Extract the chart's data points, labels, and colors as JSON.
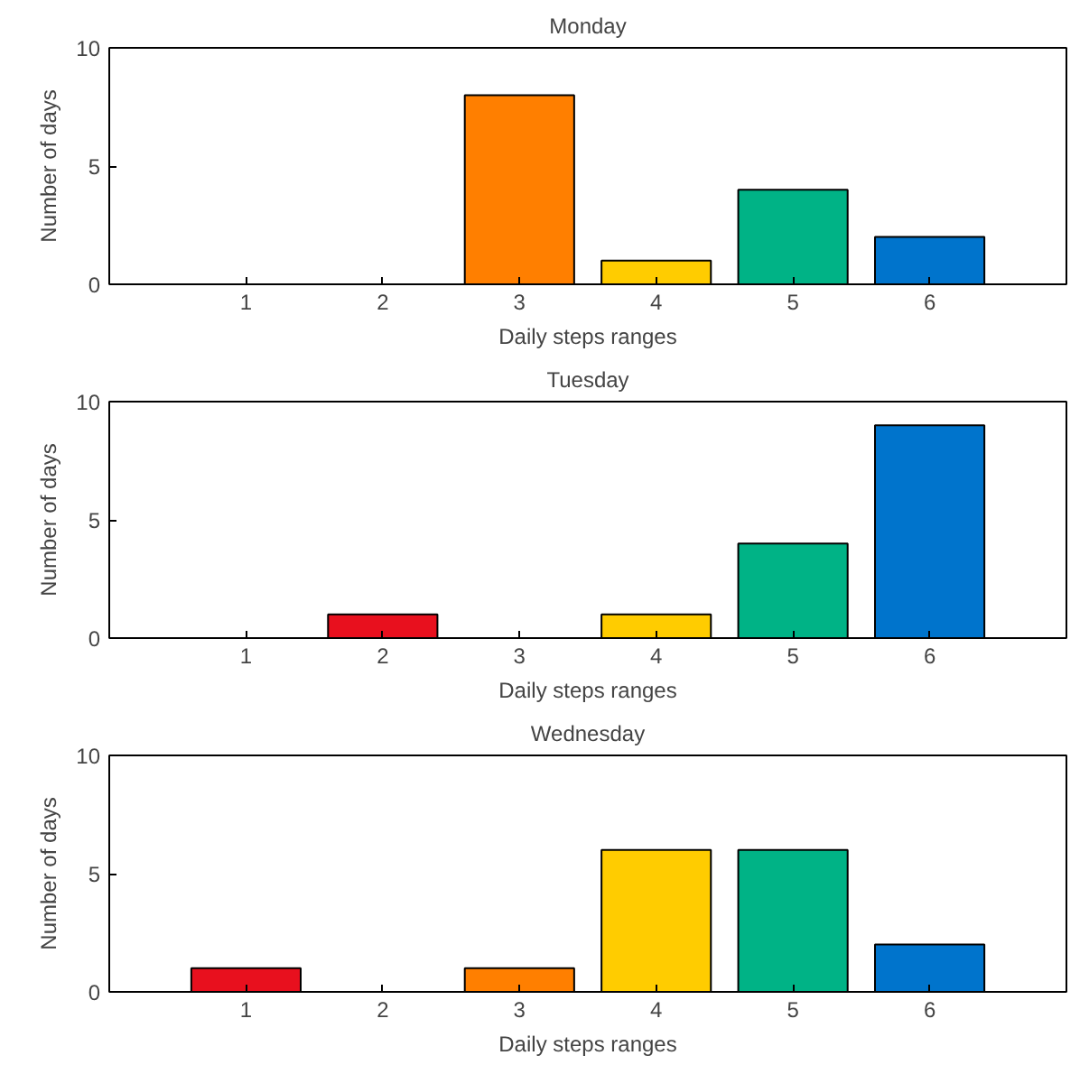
{
  "chart_data": [
    {
      "type": "bar",
      "title": "Monday",
      "xlabel": "Daily steps ranges",
      "ylabel": "Number of days",
      "x": [
        1,
        2,
        3,
        4,
        5,
        6
      ],
      "values": [
        0,
        0,
        8,
        1,
        4,
        2
      ],
      "colors": [
        null,
        null,
        "#ff7f00",
        "#ffcc00",
        "#00b386",
        "#0074cc"
      ],
      "xlim": [
        0,
        7
      ],
      "xticks": [
        1,
        2,
        3,
        4,
        5,
        6
      ],
      "ylim": [
        0,
        10
      ],
      "yticks": [
        0,
        5,
        10
      ]
    },
    {
      "type": "bar",
      "title": "Tuesday",
      "xlabel": "Daily steps ranges",
      "ylabel": "Number of days",
      "x": [
        1,
        2,
        3,
        4,
        5,
        6
      ],
      "values": [
        0,
        1,
        0,
        1,
        4,
        9
      ],
      "colors": [
        null,
        "#e8101e",
        null,
        "#ffcc00",
        "#00b386",
        "#0074cc"
      ],
      "xlim": [
        0,
        7
      ],
      "xticks": [
        1,
        2,
        3,
        4,
        5,
        6
      ],
      "ylim": [
        0,
        10
      ],
      "yticks": [
        0,
        5,
        10
      ]
    },
    {
      "type": "bar",
      "title": "Wednesday",
      "xlabel": "Daily steps ranges",
      "ylabel": "Number of days",
      "x": [
        1,
        2,
        3,
        4,
        5,
        6
      ],
      "values": [
        1,
        0,
        1,
        6,
        6,
        2
      ],
      "colors": [
        "#e8101e",
        null,
        "#ff7f00",
        "#ffcc00",
        "#00b386",
        "#0074cc"
      ],
      "xlim": [
        0,
        7
      ],
      "xticks": [
        1,
        2,
        3,
        4,
        5,
        6
      ],
      "ylim": [
        0,
        10
      ],
      "yticks": [
        0,
        5,
        10
      ]
    }
  ]
}
